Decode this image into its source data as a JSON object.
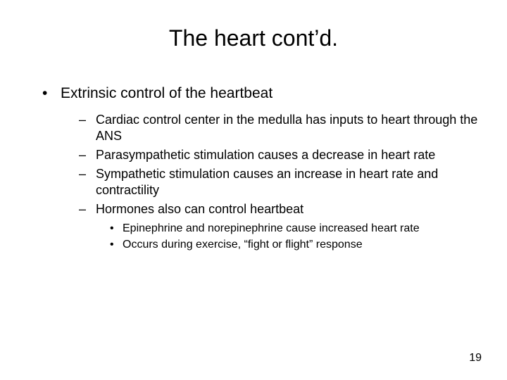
{
  "slide": {
    "title": "The heart cont’d.",
    "background_color": "#ffffff",
    "text_color": "#000000",
    "title_fontsize": 32,
    "l1_fontsize": 21,
    "l2_fontsize": 18,
    "l3_fontsize": 16,
    "bullets_l1": [
      {
        "text": "Extrinsic control of the heartbeat",
        "bullets_l2": [
          {
            "text": "Cardiac control center in the medulla has inputs to heart through the ANS",
            "bullets_l3": []
          },
          {
            "text": "Parasympathetic stimulation causes a decrease in heart rate",
            "bullets_l3": []
          },
          {
            "text": "Sympathetic stimulation causes an increase in heart rate and contractility",
            "bullets_l3": []
          },
          {
            "text": "Hormones also can control heartbeat",
            "bullets_l3": [
              {
                "text": "Epinephrine and norepinephrine cause increased heart rate"
              },
              {
                "text": "Occurs during exercise, “fight or flight” response"
              }
            ]
          }
        ]
      }
    ],
    "page_number": "19"
  }
}
